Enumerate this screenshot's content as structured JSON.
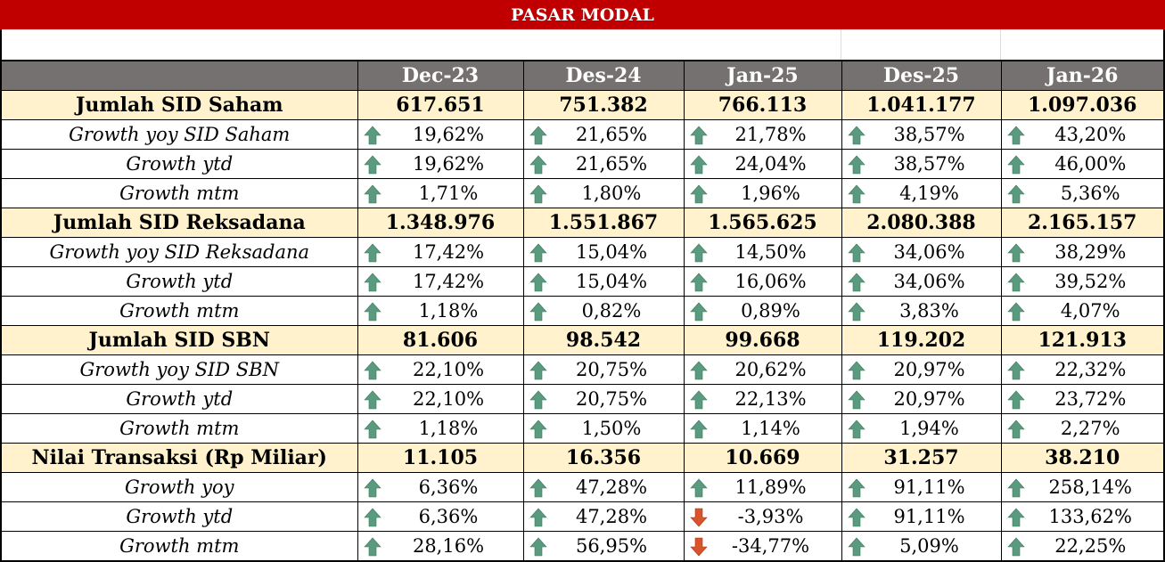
{
  "title": "PASAR MODAL",
  "columns": [
    "Dec-23",
    "Des-24",
    "Jan-25",
    "Des-25",
    "Jan-26"
  ],
  "colors": {
    "title_bg": "#c00000",
    "header_bg": "#767171",
    "main_row_bg": "#fff2cc",
    "up": "#5a9a7e",
    "down": "#d9532b"
  },
  "rows": [
    {
      "type": "main",
      "label": "Jumlah SID Saham",
      "values": [
        "617.651",
        "751.382",
        "766.113",
        "1.041.177",
        "1.097.036"
      ]
    },
    {
      "type": "sub",
      "label": "Growth yoy SID Saham",
      "values": [
        "19,62%",
        "21,65%",
        "21,78%",
        "38,57%",
        "43,20%"
      ],
      "trend": [
        "up",
        "up",
        "up",
        "up",
        "up"
      ]
    },
    {
      "type": "sub",
      "label": "Growth ytd",
      "values": [
        "19,62%",
        "21,65%",
        "24,04%",
        "38,57%",
        "46,00%"
      ],
      "trend": [
        "up",
        "up",
        "up",
        "up",
        "up"
      ]
    },
    {
      "type": "sub",
      "label": "Growth mtm",
      "values": [
        "1,71%",
        "1,80%",
        "1,96%",
        "4,19%",
        "5,36%"
      ],
      "trend": [
        "up",
        "up",
        "up",
        "up",
        "up"
      ]
    },
    {
      "type": "main",
      "label": "Jumlah SID Reksadana",
      "values": [
        "1.348.976",
        "1.551.867",
        "1.565.625",
        "2.080.388",
        "2.165.157"
      ]
    },
    {
      "type": "sub",
      "label": "Growth yoy SID Reksadana",
      "values": [
        "17,42%",
        "15,04%",
        "14,50%",
        "34,06%",
        "38,29%"
      ],
      "trend": [
        "up",
        "up",
        "up",
        "up",
        "up"
      ]
    },
    {
      "type": "sub",
      "label": "Growth ytd",
      "values": [
        "17,42%",
        "15,04%",
        "16,06%",
        "34,06%",
        "39,52%"
      ],
      "trend": [
        "up",
        "up",
        "up",
        "up",
        "up"
      ]
    },
    {
      "type": "sub",
      "label": "Growth mtm",
      "values": [
        "1,18%",
        "0,82%",
        "0,89%",
        "3,83%",
        "4,07%"
      ],
      "trend": [
        "up",
        "up",
        "up",
        "up",
        "up"
      ]
    },
    {
      "type": "main",
      "label": "Jumlah SID SBN",
      "values": [
        "81.606",
        "98.542",
        "99.668",
        "119.202",
        "121.913"
      ]
    },
    {
      "type": "sub",
      "label": "Growth yoy SID SBN",
      "values": [
        "22,10%",
        "20,75%",
        "20,62%",
        "20,97%",
        "22,32%"
      ],
      "trend": [
        "up",
        "up",
        "up",
        "up",
        "up"
      ]
    },
    {
      "type": "sub",
      "label": "Growth ytd",
      "values": [
        "22,10%",
        "20,75%",
        "22,13%",
        "20,97%",
        "23,72%"
      ],
      "trend": [
        "up",
        "up",
        "up",
        "up",
        "up"
      ]
    },
    {
      "type": "sub",
      "label": "Growth mtm",
      "values": [
        "1,18%",
        "1,50%",
        "1,14%",
        "1,94%",
        "2,27%"
      ],
      "trend": [
        "up",
        "up",
        "up",
        "up",
        "up"
      ]
    },
    {
      "type": "main",
      "label": "Nilai Transaksi (Rp Miliar)",
      "values": [
        "11.105",
        "16.356",
        "10.669",
        "31.257",
        "38.210"
      ]
    },
    {
      "type": "sub",
      "label": "Growth yoy",
      "values": [
        "6,36%",
        "47,28%",
        "11,89%",
        "91,11%",
        "258,14%"
      ],
      "trend": [
        "up",
        "up",
        "up",
        "up",
        "up"
      ]
    },
    {
      "type": "sub",
      "label": "Growth ytd",
      "values": [
        "6,36%",
        "47,28%",
        "-3,93%",
        "91,11%",
        "133,62%"
      ],
      "trend": [
        "up",
        "up",
        "down",
        "up",
        "up"
      ]
    },
    {
      "type": "sub",
      "label": "Growth mtm",
      "values": [
        "28,16%",
        "56,95%",
        "-34,77%",
        "5,09%",
        "22,25%"
      ],
      "trend": [
        "up",
        "up",
        "down",
        "up",
        "up"
      ]
    }
  ]
}
